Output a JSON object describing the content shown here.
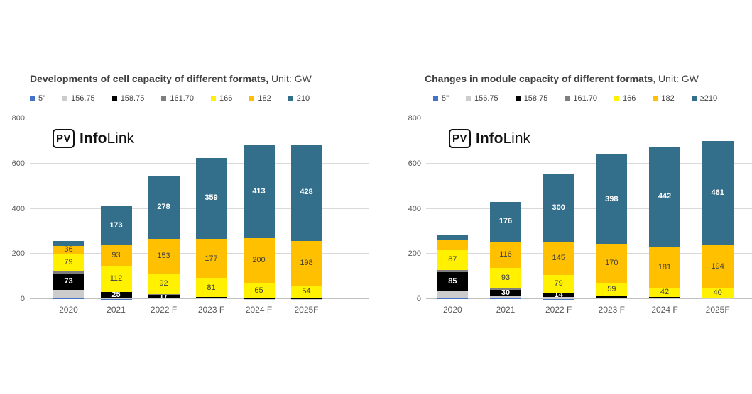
{
  "page": {
    "background": "#ffffff"
  },
  "watermark": {
    "badge": "PV",
    "name_bold": "Info",
    "name_regular": "Link"
  },
  "chart_data": [
    {
      "type": "bar",
      "stacked": true,
      "title_bold": "Developments of cell capacity of different formats,",
      "title_regular": " Unit: GW",
      "unit": "GW",
      "legend_position": "top",
      "gridlines": true,
      "categories": [
        "2020",
        "2021",
        "2022 F",
        "2023 F",
        "2024 F",
        "2025F"
      ],
      "y_axis": {
        "min": 0,
        "max": 800,
        "tick_step": 200,
        "ticks": [
          0,
          200,
          400,
          600,
          800
        ]
      },
      "series": [
        {
          "name": "5\"",
          "color": "#4472c4",
          "label_color": "#ffffff",
          "label_bold": false,
          "values": [
            2,
            1,
            0,
            0,
            0,
            0
          ],
          "labels": [
            "",
            "",
            "",
            "",
            "",
            ""
          ]
        },
        {
          "name": "156.75",
          "color": "#cccccc",
          "label_color": "#404040",
          "label_bold": false,
          "values": [
            38,
            5,
            3,
            2,
            1,
            1
          ],
          "labels": [
            "",
            "",
            "",
            "",
            "",
            ""
          ]
        },
        {
          "name": "158.75",
          "color": "#000000",
          "label_color": "#ffffff",
          "label_bold": true,
          "values": [
            73,
            25,
            17,
            7,
            4,
            4
          ],
          "labels": [
            "73",
            "25",
            "17",
            "",
            "",
            ""
          ]
        },
        {
          "name": "161.70",
          "color": "#7f7f7f",
          "label_color": "#ffffff",
          "label_bold": false,
          "values": [
            8,
            2,
            1,
            0,
            0,
            0
          ],
          "labels": [
            "",
            "",
            "",
            "",
            "",
            ""
          ]
        },
        {
          "name": "166",
          "color": "#fff100",
          "label_color": "#404040",
          "label_bold": false,
          "values": [
            79,
            112,
            92,
            81,
            65,
            54
          ],
          "labels": [
            "79",
            "112",
            "92",
            "81",
            "65",
            "54"
          ]
        },
        {
          "name": "182",
          "color": "#ffc000",
          "label_color": "#404040",
          "label_bold": false,
          "values": [
            36,
            93,
            153,
            177,
            200,
            198
          ],
          "labels": [
            "36",
            "93",
            "153",
            "177",
            "200",
            "198"
          ]
        },
        {
          "name": "210",
          "color": "#336f8a",
          "label_color": "#ffffff",
          "label_bold": true,
          "values": [
            22,
            173,
            278,
            359,
            413,
            428
          ],
          "labels": [
            "",
            "173",
            "278",
            "359",
            "413",
            "428"
          ]
        }
      ]
    },
    {
      "type": "bar",
      "stacked": true,
      "title_bold": "Changes in module capacity of different formats",
      "title_regular": ", Unit: GW",
      "unit": "GW",
      "legend_position": "top",
      "gridlines": true,
      "categories": [
        "2020",
        "2021",
        "2022 F",
        "2023 F",
        "2024 F",
        "2025F"
      ],
      "y_axis": {
        "min": 0,
        "max": 800,
        "tick_step": 200,
        "ticks": [
          0,
          200,
          400,
          600,
          800
        ]
      },
      "series": [
        {
          "name": "5\"",
          "color": "#4472c4",
          "label_color": "#ffffff",
          "label_bold": false,
          "values": [
            3,
            2,
            1,
            0,
            0,
            0
          ],
          "labels": [
            "",
            "",
            "",
            "",
            "",
            ""
          ]
        },
        {
          "name": "156.75",
          "color": "#cccccc",
          "label_color": "#404040",
          "label_bold": false,
          "values": [
            32,
            10,
            10,
            5,
            3,
            2
          ],
          "labels": [
            "",
            "",
            "",
            "",
            "",
            ""
          ]
        },
        {
          "name": "158.75",
          "color": "#000000",
          "label_color": "#ffffff",
          "label_bold": true,
          "values": [
            85,
            30,
            14,
            8,
            5,
            4
          ],
          "labels": [
            "85",
            "30",
            "14",
            "",
            "",
            ""
          ]
        },
        {
          "name": "161.70",
          "color": "#7f7f7f",
          "label_color": "#ffffff",
          "label_bold": false,
          "values": [
            10,
            4,
            3,
            1,
            0,
            0
          ],
          "labels": [
            "",
            "",
            "",
            "",
            "",
            ""
          ]
        },
        {
          "name": "166",
          "color": "#fff100",
          "label_color": "#404040",
          "label_bold": false,
          "values": [
            87,
            93,
            79,
            59,
            42,
            40
          ],
          "labels": [
            "87",
            "93",
            "79",
            "59",
            "42",
            "40"
          ]
        },
        {
          "name": "182",
          "color": "#ffc000",
          "label_color": "#404040",
          "label_bold": false,
          "values": [
            45,
            116,
            145,
            170,
            181,
            194
          ],
          "labels": [
            "",
            "116",
            "145",
            "170",
            "181",
            "194"
          ]
        },
        {
          "name": "≥210",
          "color": "#336f8a",
          "label_color": "#ffffff",
          "label_bold": true,
          "values": [
            25,
            176,
            300,
            398,
            442,
            461
          ],
          "labels": [
            "",
            "176",
            "300",
            "398",
            "442",
            "461"
          ]
        }
      ]
    }
  ]
}
